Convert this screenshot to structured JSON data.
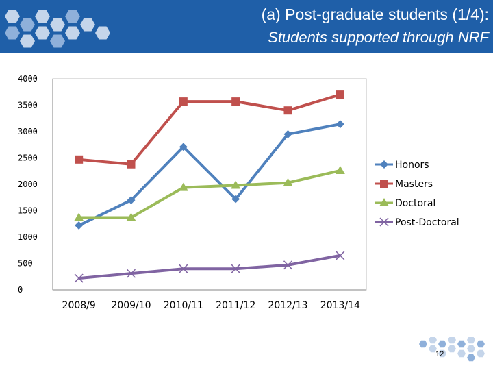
{
  "header": {
    "title": "(a) Post-graduate students (1/4):",
    "subtitle": "Students supported through NRF"
  },
  "page_number": "12",
  "colors": {
    "header_bg": "#1f5fa8",
    "hexagon_light": "#c5d5ea",
    "hexagon_mid": "#8fb0da"
  },
  "chart_data": {
    "type": "line",
    "title": "",
    "xlabel": "",
    "ylabel": "",
    "categories": [
      "2008/9",
      "2009/10",
      "2010/11",
      "2011/12",
      "2012/13",
      "2013/14"
    ],
    "ylim": [
      0,
      4000
    ],
    "yticks": [
      0,
      500,
      1000,
      1500,
      2000,
      2500,
      3000,
      3500,
      4000
    ],
    "ytick_labels": [
      "0",
      "500",
      "1000",
      "1500",
      "2000",
      "2500",
      "3000",
      "3500",
      "4000"
    ],
    "grid": false,
    "legend": "right",
    "series": [
      {
        "name": "Honors",
        "color": "#4f81bd",
        "marker": "diamond",
        "values": [
          1220,
          1700,
          2710,
          1720,
          2950,
          3140
        ]
      },
      {
        "name": "Masters",
        "color": "#c0504d",
        "marker": "square",
        "values": [
          2470,
          2380,
          3570,
          3570,
          3400,
          3700
        ]
      },
      {
        "name": "Doctoral",
        "color": "#9bbb59",
        "marker": "triangle",
        "values": [
          1370,
          1370,
          1940,
          1980,
          2030,
          2260
        ]
      },
      {
        "name": "Post-Doctoral",
        "color": "#8064a2",
        "marker": "x",
        "values": [
          220,
          310,
          400,
          400,
          470,
          650
        ]
      }
    ]
  }
}
